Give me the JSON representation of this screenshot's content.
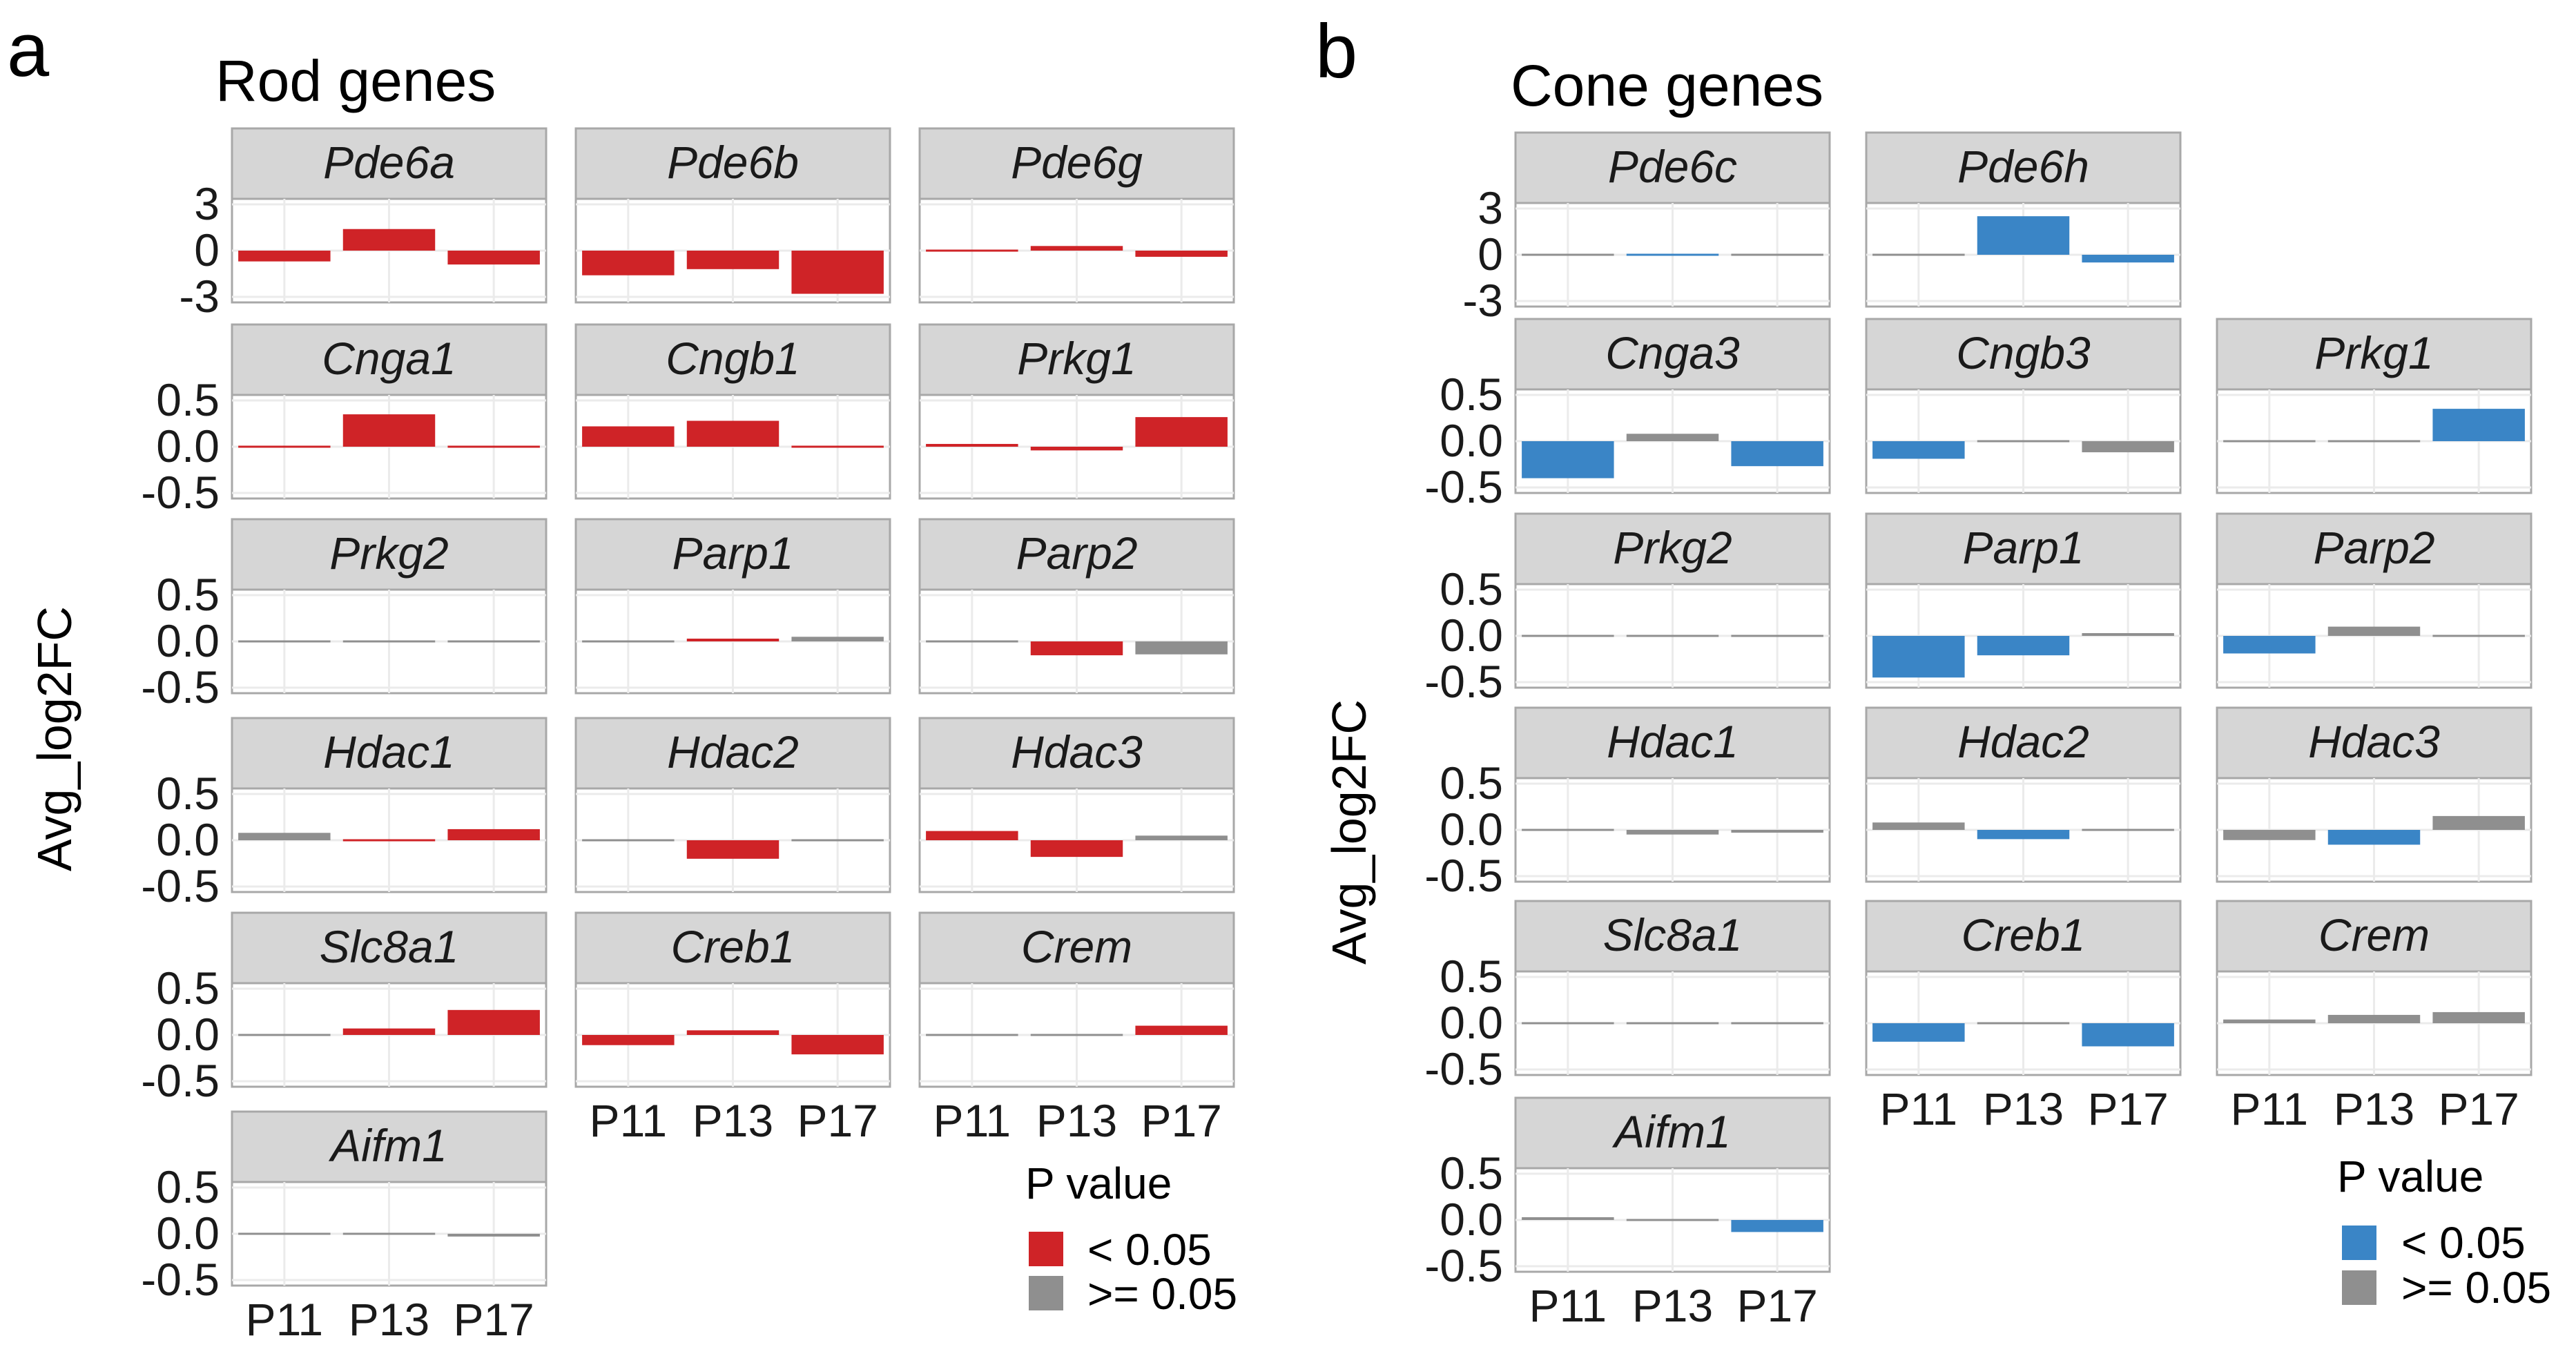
{
  "colors": {
    "sig_rod": "#cf2327",
    "sig_cone": "#3a85c6",
    "nonsig": "#8f8f8f",
    "strip_bg": "#d6d6d6",
    "panel_border": "#a8a8a8",
    "grid": "#ebebeb"
  },
  "chart_data": [
    {
      "type": "bar",
      "panel_letter": "a",
      "title": "Rod genes",
      "ylabel": "Avg_log2FC",
      "categories": [
        "P11",
        "P13",
        "P17"
      ],
      "legend": {
        "title": "P value",
        "items": [
          "< 0.05",
          ">= 0.05"
        ]
      },
      "facets": [
        {
          "gene": "Pde6a",
          "ylim": [
            -3,
            3
          ],
          "yticks": [
            "3",
            "0",
            "-3"
          ],
          "values": [
            -0.7,
            1.4,
            -0.9
          ],
          "significant": [
            true,
            true,
            true
          ]
        },
        {
          "gene": "Pde6b",
          "ylim": [
            -3,
            3
          ],
          "yticks": [
            "3",
            "0",
            "-3"
          ],
          "values": [
            -1.6,
            -1.2,
            -2.8
          ],
          "significant": [
            true,
            true,
            true
          ]
        },
        {
          "gene": "Pde6g",
          "ylim": [
            -3,
            3
          ],
          "yticks": [
            "3",
            "0",
            "-3"
          ],
          "values": [
            -0.05,
            0.3,
            -0.4
          ],
          "significant": [
            true,
            true,
            true
          ]
        },
        {
          "gene": "Cnga1",
          "ylim": [
            -0.5,
            0.5
          ],
          "yticks": [
            "0.5",
            "0.0",
            "-0.5"
          ],
          "values": [
            -0.02,
            0.35,
            0.0
          ],
          "significant": [
            true,
            true,
            true
          ]
        },
        {
          "gene": "Cngb1",
          "ylim": [
            -0.5,
            0.5
          ],
          "yticks": [
            "0.5",
            "0.0",
            "-0.5"
          ],
          "values": [
            0.22,
            0.28,
            0.0
          ],
          "significant": [
            true,
            true,
            true
          ]
        },
        {
          "gene": "Prkg1",
          "ylim": [
            -0.5,
            0.5
          ],
          "yticks": [
            "0.5",
            "0.0",
            "-0.5"
          ],
          "values": [
            0.03,
            -0.04,
            0.32
          ],
          "significant": [
            true,
            true,
            true
          ]
        },
        {
          "gene": "Prkg2",
          "ylim": [
            -0.5,
            0.5
          ],
          "yticks": [
            "0.5",
            "0.0",
            "-0.5"
          ],
          "values": [
            0.0,
            0.0,
            0.0
          ],
          "significant": [
            false,
            false,
            false
          ]
        },
        {
          "gene": "Parp1",
          "ylim": [
            -0.5,
            0.5
          ],
          "yticks": [
            "0.5",
            "0.0",
            "-0.5"
          ],
          "values": [
            0.01,
            0.03,
            0.05
          ],
          "significant": [
            false,
            true,
            false
          ]
        },
        {
          "gene": "Parp2",
          "ylim": [
            -0.5,
            0.5
          ],
          "yticks": [
            "0.5",
            "0.0",
            "-0.5"
          ],
          "values": [
            0.0,
            -0.15,
            -0.14
          ],
          "significant": [
            false,
            true,
            false
          ]
        },
        {
          "gene": "Hdac1",
          "ylim": [
            -0.5,
            0.5
          ],
          "yticks": [
            "0.5",
            "0.0",
            "-0.5"
          ],
          "values": [
            0.08,
            -0.02,
            0.12
          ],
          "significant": [
            false,
            true,
            true
          ]
        },
        {
          "gene": "Hdac2",
          "ylim": [
            -0.5,
            0.5
          ],
          "yticks": [
            "0.5",
            "0.0",
            "-0.5"
          ],
          "values": [
            0.0,
            -0.2,
            -0.01
          ],
          "significant": [
            false,
            true,
            false
          ]
        },
        {
          "gene": "Hdac3",
          "ylim": [
            -0.5,
            0.5
          ],
          "yticks": [
            "0.5",
            "0.0",
            "-0.5"
          ],
          "values": [
            0.1,
            -0.18,
            0.05
          ],
          "significant": [
            true,
            true,
            false
          ]
        },
        {
          "gene": "Slc8a1",
          "ylim": [
            -0.5,
            0.5
          ],
          "yticks": [
            "0.5",
            "0.0",
            "-0.5"
          ],
          "values": [
            0.0,
            0.07,
            0.27
          ],
          "significant": [
            false,
            true,
            true
          ]
        },
        {
          "gene": "Creb1",
          "ylim": [
            -0.5,
            0.5
          ],
          "yticks": [
            "0.5",
            "0.0",
            "-0.5"
          ],
          "values": [
            -0.11,
            0.05,
            -0.21
          ],
          "significant": [
            true,
            true,
            true
          ]
        },
        {
          "gene": "Crem",
          "ylim": [
            -0.5,
            0.5
          ],
          "yticks": [
            "0.5",
            "0.0",
            "-0.5"
          ],
          "values": [
            -0.02,
            0.0,
            0.1
          ],
          "significant": [
            false,
            false,
            true
          ]
        },
        {
          "gene": "Aifm1",
          "ylim": [
            -0.5,
            0.5
          ],
          "yticks": [
            "0.5",
            "0.0",
            "-0.5"
          ],
          "values": [
            0.0,
            -0.02,
            -0.03
          ],
          "significant": [
            false,
            false,
            false
          ]
        }
      ]
    },
    {
      "type": "bar",
      "panel_letter": "b",
      "title": "Cone genes",
      "ylabel": "Avg_log2FC",
      "categories": [
        "P11",
        "P13",
        "P17"
      ],
      "legend": {
        "title": "P value",
        "items": [
          "< 0.05",
          ">= 0.05"
        ]
      },
      "facets": [
        {
          "gene": "Pde6c",
          "ylim": [
            -3,
            3
          ],
          "yticks": [
            "3",
            "0",
            "-3"
          ],
          "values": [
            0.0,
            -0.05,
            0.1
          ],
          "significant": [
            false,
            true,
            false
          ]
        },
        {
          "gene": "Pde6h",
          "ylim": [
            -3,
            3
          ],
          "yticks": [
            "3",
            "0",
            "-3"
          ],
          "values": [
            0.05,
            2.5,
            -0.5
          ],
          "significant": [
            false,
            true,
            true
          ]
        },
        {
          "gene": "Cnga3",
          "ylim": [
            -0.5,
            0.5
          ],
          "yticks": [
            "0.5",
            "0.0",
            "-0.5"
          ],
          "values": [
            -0.4,
            0.08,
            -0.27
          ],
          "significant": [
            true,
            false,
            true
          ]
        },
        {
          "gene": "Cngb3",
          "ylim": [
            -0.5,
            0.5
          ],
          "yticks": [
            "0.5",
            "0.0",
            "-0.5"
          ],
          "values": [
            -0.19,
            -0.02,
            -0.12
          ],
          "significant": [
            true,
            false,
            false
          ]
        },
        {
          "gene": "Prkg1",
          "ylim": [
            -0.5,
            0.5
          ],
          "yticks": [
            "0.5",
            "0.0",
            "-0.5"
          ],
          "values": [
            -0.01,
            0.0,
            0.35
          ],
          "significant": [
            false,
            false,
            true
          ]
        },
        {
          "gene": "Prkg2",
          "ylim": [
            -0.5,
            0.5
          ],
          "yticks": [
            "0.5",
            "0.0",
            "-0.5"
          ],
          "values": [
            0.0,
            0.01,
            0.0
          ],
          "significant": [
            false,
            false,
            false
          ]
        },
        {
          "gene": "Parp1",
          "ylim": [
            -0.5,
            0.5
          ],
          "yticks": [
            "0.5",
            "0.0",
            "-0.5"
          ],
          "values": [
            -0.45,
            -0.21,
            0.03
          ],
          "significant": [
            true,
            true,
            false
          ]
        },
        {
          "gene": "Parp2",
          "ylim": [
            -0.5,
            0.5
          ],
          "yticks": [
            "0.5",
            "0.0",
            "-0.5"
          ],
          "values": [
            -0.19,
            0.1,
            -0.01
          ],
          "significant": [
            true,
            false,
            false
          ]
        },
        {
          "gene": "Hdac1",
          "ylim": [
            -0.5,
            0.5
          ],
          "yticks": [
            "0.5",
            "0.0",
            "-0.5"
          ],
          "values": [
            0.0,
            -0.05,
            -0.03
          ],
          "significant": [
            false,
            false,
            false
          ]
        },
        {
          "gene": "Hdac2",
          "ylim": [
            -0.5,
            0.5
          ],
          "yticks": [
            "0.5",
            "0.0",
            "-0.5"
          ],
          "values": [
            0.08,
            -0.1,
            0.02
          ],
          "significant": [
            false,
            true,
            false
          ]
        },
        {
          "gene": "Hdac3",
          "ylim": [
            -0.5,
            0.5
          ],
          "yticks": [
            "0.5",
            "0.0",
            "-0.5"
          ],
          "values": [
            -0.11,
            -0.16,
            0.15
          ],
          "significant": [
            false,
            true,
            false
          ]
        },
        {
          "gene": "Slc8a1",
          "ylim": [
            -0.5,
            0.5
          ],
          "yticks": [
            "0.5",
            "0.0",
            "-0.5"
          ],
          "values": [
            0.0,
            -0.02,
            0.02
          ],
          "significant": [
            false,
            false,
            false
          ]
        },
        {
          "gene": "Creb1",
          "ylim": [
            -0.5,
            0.5
          ],
          "yticks": [
            "0.5",
            "0.0",
            "-0.5"
          ],
          "values": [
            -0.2,
            0.02,
            -0.25
          ],
          "significant": [
            true,
            false,
            true
          ]
        },
        {
          "gene": "Crem",
          "ylim": [
            -0.5,
            0.5
          ],
          "yticks": [
            "0.5",
            "0.0",
            "-0.5"
          ],
          "values": [
            0.04,
            0.09,
            0.12
          ],
          "significant": [
            false,
            false,
            false
          ]
        },
        {
          "gene": "Aifm1",
          "ylim": [
            -0.5,
            0.5
          ],
          "yticks": [
            "0.5",
            "0.0",
            "-0.5"
          ],
          "values": [
            0.03,
            0.01,
            -0.13
          ],
          "significant": [
            false,
            false,
            true
          ]
        }
      ]
    }
  ]
}
